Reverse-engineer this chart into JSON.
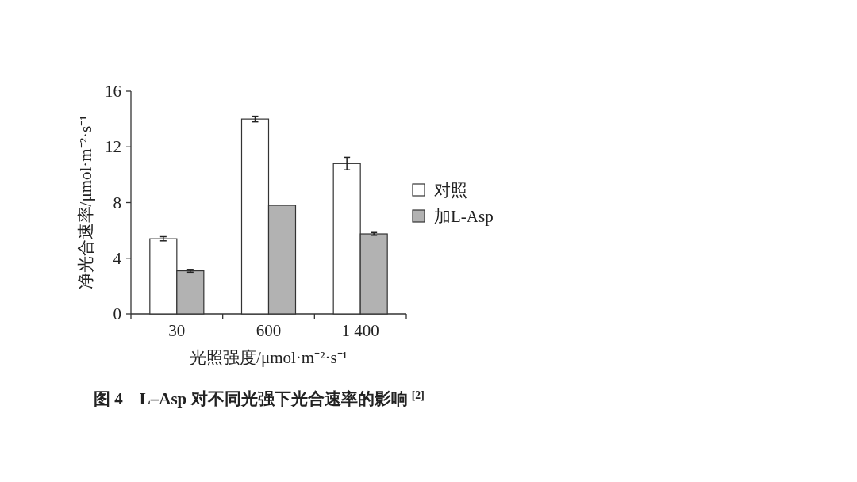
{
  "chart_data": {
    "type": "bar",
    "title": "图 4　L–Asp 对不同光强下光合速率的影响 $^{[2]}$",
    "xlabel": "光照强度/μmol·m⁻²·s⁻¹",
    "ylabel": "净光合速率/μmol·m⁻²·s⁻¹",
    "categories": [
      "30",
      "600",
      "1 400"
    ],
    "series": [
      {
        "name": "对照",
        "color": "#ffffff",
        "values": [
          5.4,
          14.0,
          10.8
        ],
        "errors": [
          0.15,
          0.2,
          0.45
        ]
      },
      {
        "name": "加L-Asp",
        "color": "#b2b2b2",
        "values": [
          3.1,
          7.8,
          5.75
        ],
        "errors": [
          0.1,
          null,
          0.1
        ]
      }
    ],
    "ylim": [
      0,
      16
    ],
    "yticks": [
      0,
      4,
      8,
      12,
      16
    ],
    "grid": false,
    "legend": "right"
  }
}
